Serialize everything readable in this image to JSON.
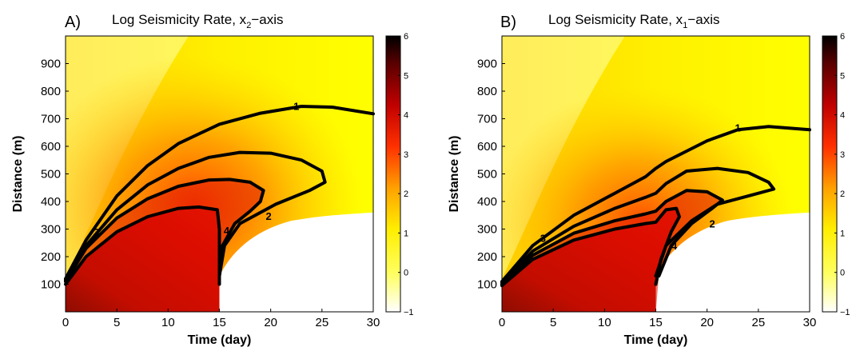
{
  "chart_data": [
    {
      "type": "heatmap",
      "panel_letter": "A)",
      "title_main": "Log Seismicity Rate, x",
      "title_sub": "2",
      "title_tail": "−axis",
      "xlabel": "Time (day)",
      "ylabel": "Distance  (m)",
      "xlim": [
        0,
        30
      ],
      "ylim": [
        0,
        1000
      ],
      "xticks": [
        "0",
        "5",
        "10",
        "15",
        "20",
        "25",
        "30"
      ],
      "yticks": [
        "100",
        "200",
        "300",
        "400",
        "500",
        "600",
        "700",
        "800",
        "900"
      ],
      "colorbar": {
        "range": [
          -1,
          6
        ],
        "ticks": [
          "−1",
          "0",
          "1",
          "2",
          "3",
          "4",
          "5",
          "6"
        ]
      },
      "contours": [
        {
          "level": "1",
          "points": [
            [
              0,
              120
            ],
            [
              2,
              260
            ],
            [
              5,
              420
            ],
            [
              8,
              530
            ],
            [
              11,
              610
            ],
            [
              15,
              680
            ],
            [
              19,
              720
            ],
            [
              23,
              745
            ],
            [
              26,
              742
            ],
            [
              30,
              718
            ]
          ],
          "label_at": [
            22.5,
            747
          ]
        },
        {
          "level": "2",
          "points": [
            [
              0,
              115
            ],
            [
              2,
              240
            ],
            [
              5,
              370
            ],
            [
              8,
              460
            ],
            [
              11,
              520
            ],
            [
              14,
              560
            ],
            [
              17,
              578
            ],
            [
              20,
              575
            ],
            [
              23,
              550
            ],
            [
              25,
              510
            ],
            [
              25.3,
              470
            ],
            [
              23.8,
              440
            ],
            [
              20.5,
              390
            ],
            [
              17,
              320
            ],
            [
              15.5,
              240
            ],
            [
              15,
              130
            ]
          ],
          "label_at": [
            19.8,
            348
          ]
        },
        {
          "level": "3",
          "points": [
            [
              0,
              110
            ],
            [
              2,
              230
            ],
            [
              5,
              340
            ],
            [
              8,
              410
            ],
            [
              11,
              455
            ],
            [
              14,
              478
            ],
            [
              16,
              480
            ],
            [
              18,
              470
            ],
            [
              19.3,
              440
            ],
            [
              19,
              400
            ],
            [
              18,
              365
            ],
            [
              16.5,
              320
            ],
            [
              15.3,
              240
            ],
            [
              15,
              130
            ]
          ],
          "label_at": [
            3,
            290
          ]
        },
        {
          "level": "4",
          "points": [
            [
              0,
              100
            ],
            [
              2,
              200
            ],
            [
              5,
              290
            ],
            [
              8,
              345
            ],
            [
              11,
              375
            ],
            [
              13,
              380
            ],
            [
              14.8,
              370
            ],
            [
              15,
              300
            ],
            [
              15,
              100
            ]
          ],
          "label_at": [
            15.7,
            295
          ]
        }
      ]
    },
    {
      "type": "heatmap",
      "panel_letter": "B)",
      "title_main": "Log Seismicity Rate, x",
      "title_sub": "1",
      "title_tail": "−axis",
      "xlabel": "Time (day)",
      "ylabel": "Distance  (m)",
      "xlim": [
        0,
        30
      ],
      "ylim": [
        0,
        1000
      ],
      "xticks": [
        "0",
        "5",
        "10",
        "15",
        "20",
        "25",
        "30"
      ],
      "yticks": [
        "100",
        "200",
        "300",
        "400",
        "500",
        "600",
        "700",
        "800",
        "900"
      ],
      "colorbar": {
        "range": [
          -1,
          6
        ],
        "ticks": [
          "−1",
          "0",
          "1",
          "2",
          "3",
          "4",
          "5",
          "6"
        ]
      },
      "contours": [
        {
          "level": "1",
          "points": [
            [
              0,
              110
            ],
            [
              3,
              240
            ],
            [
              7,
              350
            ],
            [
              11,
              430
            ],
            [
              14,
              490
            ],
            [
              15,
              520
            ],
            [
              16,
              545
            ],
            [
              20,
              620
            ],
            [
              23,
              660
            ],
            [
              26,
              672
            ],
            [
              30,
              660
            ]
          ],
          "label_at": [
            23,
            668
          ]
        },
        {
          "level": "2",
          "points": [
            [
              0,
              105
            ],
            [
              3,
              220
            ],
            [
              7,
              310
            ],
            [
              11,
              375
            ],
            [
              14,
              415
            ],
            [
              15,
              430
            ],
            [
              16,
              465
            ],
            [
              18,
              510
            ],
            [
              21,
              520
            ],
            [
              24,
              505
            ],
            [
              26,
              470
            ],
            [
              26.5,
              445
            ],
            [
              24.5,
              425
            ],
            [
              21,
              390
            ],
            [
              18.5,
              330
            ],
            [
              16,
              240
            ],
            [
              15,
              130
            ]
          ],
          "label_at": [
            20.5,
            320
          ]
        },
        {
          "level": "3",
          "points": [
            [
              0,
              100
            ],
            [
              3,
              205
            ],
            [
              7,
              285
            ],
            [
              11,
              330
            ],
            [
              14,
              355
            ],
            [
              15,
              365
            ],
            [
              16,
              400
            ],
            [
              18,
              440
            ],
            [
              20,
              435
            ],
            [
              21.5,
              405
            ],
            [
              20.5,
              375
            ],
            [
              18.5,
              320
            ],
            [
              16.5,
              240
            ],
            [
              15.3,
              130
            ]
          ],
          "label_at": [
            4,
            268
          ]
        },
        {
          "level": "4",
          "points": [
            [
              0,
              95
            ],
            [
              3,
              190
            ],
            [
              7,
              260
            ],
            [
              11,
              300
            ],
            [
              14,
              320
            ],
            [
              15,
              325
            ],
            [
              16,
              370
            ],
            [
              17,
              375
            ],
            [
              17.3,
              345
            ],
            [
              16.5,
              290
            ],
            [
              15.5,
              190
            ],
            [
              15,
              100
            ]
          ],
          "label_at": [
            16.8,
            240
          ]
        }
      ]
    }
  ]
}
